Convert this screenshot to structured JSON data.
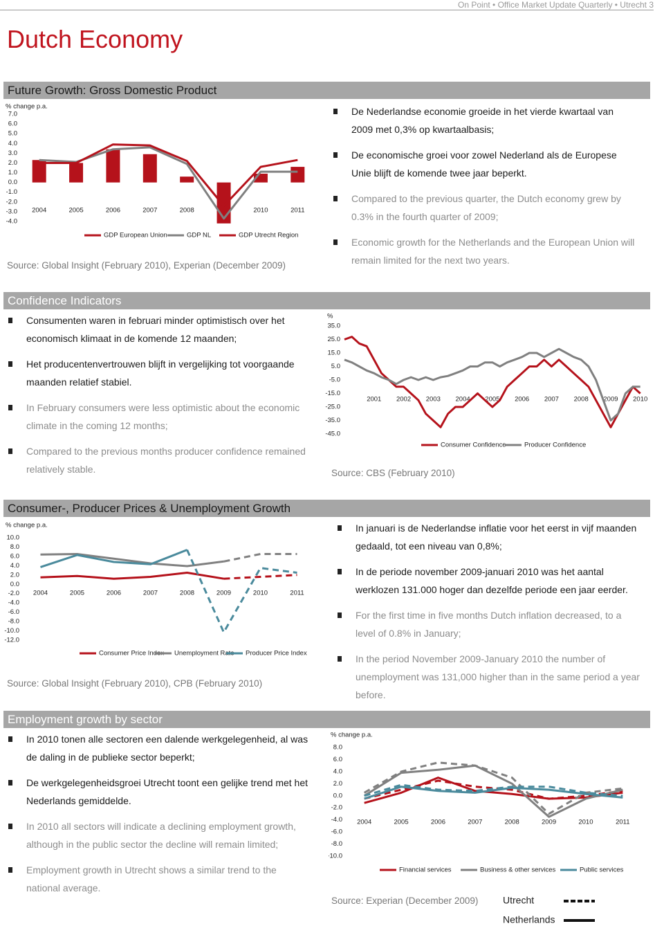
{
  "header": "On Point • Office Market Update Quarterly • Utrecht 3",
  "title": "Dutch Economy",
  "sections": [
    {
      "heading": "Future Growth: Gross Domestic Product",
      "bullets": [
        "De Nederlandse economie groeide in het vierde kwartaal van 2009 met 0,3% op kwartaalbasis;",
        "De economische groei voor zowel Nederland als de Europese Unie blijft de komende twee jaar beperkt.",
        "Compared to the previous quarter, the Dutch economy grew by 0.3% in the fourth quarter of 2009;",
        "Economic growth for the Netherlands and the European Union will remain limited for the next two years."
      ],
      "source": "Source: Global Insight (February 2010), Experian (December 2009)"
    },
    {
      "heading": "Confidence Indicators",
      "bullets": [
        "Consumenten waren in februari minder optimistisch over het economisch klimaat in de komende 12 maanden;",
        "Het producentenvertrouwen blijft in vergelijking tot voorgaande maanden relatief stabiel.",
        "In February consumers were less optimistic about the economic climate in the coming 12 months;",
        "Compared to the previous months producer confidence remained relatively stable."
      ],
      "source": "Source: CBS (February 2010)"
    },
    {
      "heading": "Consumer-, Producer Prices & Unemployment Growth",
      "bullets": [
        "In januari is de Nederlandse inflatie voor het eerst in vijf maanden gedaald, tot een niveau van 0,8%;",
        "In de periode november 2009-januari 2010 was het aantal werklozen 131.000 hoger dan dezelfde periode een jaar eerder.",
        "For the first time in five months Dutch inflation decreased, to a level of 0.8% in January;",
        "In the period November 2009-January 2010 the number of unemployment was 131,000 higher than in the same period a year before."
      ],
      "source": "Source: Global Insight (February 2010), CPB (February 2010)"
    },
    {
      "heading": "Employment growth by sector",
      "bullets": [
        "In 2010 tonen alle sectoren een dalende werkgelegenheid, al was de daling in de publieke sector beperkt;",
        "De werkgelegenheidsgroei Utrecht toont een gelijke trend met het Nederlands gemiddelde.",
        "In 2010 all sectors will indicate a declining employment growth, although in the public sector the decline will remain limited;",
        "Employment growth in Utrecht shows a similar trend to the national average."
      ],
      "source": "Source: Experian (December 2009)"
    }
  ],
  "chart_data": [
    {
      "type": "combo",
      "y_axis_title": "% change p.a.",
      "categories": [
        "2004",
        "2005",
        "2006",
        "2007",
        "2008",
        "2009",
        "2010",
        "2011"
      ],
      "series": [
        {
          "name": "GDP European Union",
          "mark": "bar",
          "color": "#b5121b",
          "values": [
            2.3,
            2.0,
            3.4,
            2.9,
            0.6,
            -4.2,
            0.9,
            1.6
          ]
        },
        {
          "name": "GDP NL",
          "mark": "line",
          "color": "#808080",
          "values": [
            2.3,
            2.1,
            3.4,
            3.6,
            1.9,
            -3.7,
            1.1,
            1.1
          ]
        },
        {
          "name": "GDP Utrecht Region",
          "mark": "line",
          "color": "#b5121b",
          "values": [
            2.0,
            2.0,
            3.9,
            3.8,
            2.2,
            -2.4,
            1.6,
            2.3
          ]
        }
      ],
      "ylim": [
        -4,
        7
      ],
      "yticks": [
        {
          "value": 7,
          "label": "7.0"
        },
        {
          "value": 6,
          "label": "6.0"
        },
        {
          "value": 5,
          "label": "5.0"
        },
        {
          "value": 4,
          "label": "4.0"
        },
        {
          "value": 3,
          "label": "3.0"
        },
        {
          "value": 2,
          "label": "2.0"
        },
        {
          "value": 1,
          "label": "1.0"
        },
        {
          "value": 0,
          "label": "0.0"
        },
        {
          "value": -1,
          "label": "-1.0"
        },
        {
          "value": -2,
          "label": "-2.0"
        },
        {
          "value": -3,
          "label": "-3.0"
        },
        {
          "value": -4,
          "label": "-4.0"
        }
      ]
    },
    {
      "type": "line",
      "y_axis_title": "%",
      "x": [
        2000,
        2000.25,
        2000.5,
        2000.75,
        2001,
        2001.25,
        2001.5,
        2001.75,
        2002,
        2002.25,
        2002.5,
        2002.75,
        2003,
        2003.25,
        2003.5,
        2003.75,
        2004,
        2004.25,
        2004.5,
        2004.75,
        2005,
        2005.25,
        2005.5,
        2005.75,
        2006,
        2006.25,
        2006.5,
        2006.75,
        2007,
        2007.25,
        2007.5,
        2007.75,
        2008,
        2008.25,
        2008.5,
        2008.75,
        2009,
        2009.25,
        2009.5,
        2009.75,
        2010
      ],
      "series": [
        {
          "name": "Consumer Confidence",
          "color": "#b5121b",
          "values": [
            25,
            27,
            22,
            20,
            10,
            0,
            -5,
            -10,
            -10,
            -15,
            -20,
            -30,
            -35,
            -40,
            -30,
            -25,
            -25,
            -20,
            -15,
            -20,
            -25,
            -20,
            -10,
            -5,
            0,
            5,
            5,
            10,
            5,
            10,
            5,
            0,
            -5,
            -10,
            -20,
            -30,
            -40,
            -30,
            -20,
            -10,
            -15
          ]
        },
        {
          "name": "Producer Confidence",
          "color": "#808080",
          "values": [
            10,
            8,
            5,
            2,
            0,
            -3,
            -5,
            -8,
            -5,
            -3,
            -5,
            -3,
            -5,
            -3,
            -2,
            0,
            2,
            5,
            5,
            8,
            8,
            5,
            8,
            10,
            12,
            15,
            15,
            12,
            15,
            18,
            15,
            12,
            10,
            5,
            -5,
            -20,
            -35,
            -30,
            -15,
            -10,
            -10
          ]
        }
      ],
      "xlim": [
        2000,
        2010.1
      ],
      "xticks": [
        2001,
        2002,
        2003,
        2004,
        2005,
        2006,
        2007,
        2008,
        2009,
        2010
      ],
      "ylim": [
        -45,
        35
      ],
      "yticks": [
        {
          "value": 35,
          "label": "35.0"
        },
        {
          "value": 25,
          "label": "25.0"
        },
        {
          "value": 15,
          "label": "15.0"
        },
        {
          "value": 5,
          "label": "5.0"
        },
        {
          "value": -5,
          "label": "-5.0"
        },
        {
          "value": -15,
          "label": "-15.0"
        },
        {
          "value": -25,
          "label": "-25.0"
        },
        {
          "value": -35,
          "label": "-35.0"
        },
        {
          "value": -45,
          "label": "-45.0"
        }
      ]
    },
    {
      "type": "line",
      "y_axis_title": "% change p.a.",
      "categories": [
        "2004",
        "2005",
        "2006",
        "2007",
        "2008",
        "2009",
        "2010",
        "2011"
      ],
      "series": [
        {
          "name": "Consumer Price Index",
          "color": "#b5121b",
          "forecast_from": "2009",
          "values": [
            1.5,
            1.8,
            1.2,
            1.6,
            2.5,
            1.2,
            1.6,
            2.0
          ]
        },
        {
          "name": "Unemployment Rate",
          "color": "#808080",
          "forecast_from": "2009",
          "values": [
            6.4,
            6.5,
            5.5,
            4.5,
            3.9,
            4.9,
            6.5,
            6.5
          ]
        },
        {
          "name": "Producer Price Index",
          "color": "#4a8a9c",
          "forecast_from": "2008",
          "values": [
            3.7,
            6.3,
            4.8,
            4.3,
            7.4,
            -10.3,
            3.5,
            2.5
          ]
        }
      ],
      "ylim": [
        -12,
        10
      ],
      "yticks": [
        {
          "value": 10,
          "label": "10.0"
        },
        {
          "value": 8,
          "label": "8.0"
        },
        {
          "value": 6,
          "label": "6.0"
        },
        {
          "value": 4,
          "label": "4.0"
        },
        {
          "value": 2,
          "label": "2.0"
        },
        {
          "value": 0,
          "label": "0.0"
        },
        {
          "value": -2,
          "label": "-2.0"
        },
        {
          "value": -4,
          "label": "-4.0"
        },
        {
          "value": -6,
          "label": "-6.0"
        },
        {
          "value": -8,
          "label": "-8.0"
        },
        {
          "value": -10,
          "label": "-10.0"
        },
        {
          "value": -12,
          "label": "-12.0"
        }
      ]
    },
    {
      "type": "line",
      "y_axis_title": "% change p.a.",
      "categories": [
        "2004",
        "2005",
        "2006",
        "2007",
        "2008",
        "2009",
        "2010",
        "2011"
      ],
      "areas": [
        {
          "label": "Utrecht",
          "dashed": true
        },
        {
          "label": "Netherlands",
          "dashed": false
        }
      ],
      "series": [
        {
          "name": "Financial services",
          "color": "#b5121b",
          "values_by_area": [
            [
              -0.5,
              1.0,
              2.5,
              1.5,
              1.0,
              -0.5,
              0,
              0.8
            ],
            [
              -1.2,
              0.5,
              3.0,
              0.8,
              0.3,
              -0.5,
              -0.3,
              0.5
            ]
          ]
        },
        {
          "name": "Business & other services",
          "color": "#808080",
          "values_by_area": [
            [
              0.5,
              4.0,
              5.5,
              5.0,
              3.0,
              -3.0,
              0.5,
              1.2
            ],
            [
              0,
              3.8,
              4.3,
              5.0,
              2.0,
              -3.5,
              -0.5,
              1.0
            ]
          ]
        },
        {
          "name": "Public services",
          "color": "#4a8a9c",
          "values_by_area": [
            [
              0,
              1.8,
              1.0,
              0.8,
              1.5,
              1.5,
              0.5,
              0
            ],
            [
              -0.5,
              1.5,
              0.8,
              0.5,
              1.3,
              1.0,
              0.3,
              -0.3
            ]
          ]
        }
      ],
      "ylim": [
        -10,
        8
      ],
      "yticks": [
        {
          "value": 8,
          "label": "8.0"
        },
        {
          "value": 6,
          "label": "6.0"
        },
        {
          "value": 4,
          "label": "4.0"
        },
        {
          "value": 2,
          "label": "2.0"
        },
        {
          "value": 0,
          "label": "0.0"
        },
        {
          "value": -2,
          "label": "-2.0"
        },
        {
          "value": -4,
          "label": "-4.0"
        },
        {
          "value": -6,
          "label": "-6.0"
        },
        {
          "value": -8,
          "label": "-8.0"
        },
        {
          "value": -10,
          "label": "-10.0"
        }
      ]
    }
  ]
}
